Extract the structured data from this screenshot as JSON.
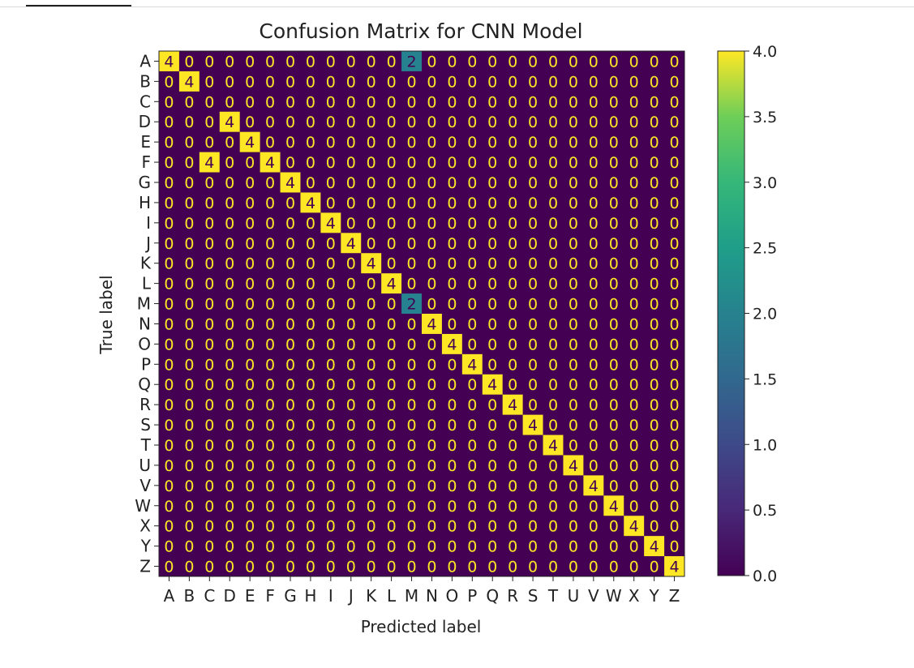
{
  "chart_data": {
    "type": "heatmap",
    "title": "Confusion Matrix for CNN Model",
    "xlabel": "Predicted label",
    "ylabel": "True label",
    "labels": [
      "A",
      "B",
      "C",
      "D",
      "E",
      "F",
      "G",
      "H",
      "I",
      "J",
      "K",
      "L",
      "M",
      "N",
      "O",
      "P",
      "Q",
      "R",
      "S",
      "T",
      "U",
      "V",
      "W",
      "X",
      "Y",
      "Z"
    ],
    "matrix": [
      [
        4,
        0,
        0,
        0,
        0,
        0,
        0,
        0,
        0,
        0,
        0,
        0,
        2,
        0,
        0,
        0,
        0,
        0,
        0,
        0,
        0,
        0,
        0,
        0,
        0,
        0
      ],
      [
        0,
        4,
        0,
        0,
        0,
        0,
        0,
        0,
        0,
        0,
        0,
        0,
        0,
        0,
        0,
        0,
        0,
        0,
        0,
        0,
        0,
        0,
        0,
        0,
        0,
        0
      ],
      [
        0,
        0,
        0,
        0,
        0,
        0,
        0,
        0,
        0,
        0,
        0,
        0,
        0,
        0,
        0,
        0,
        0,
        0,
        0,
        0,
        0,
        0,
        0,
        0,
        0,
        0
      ],
      [
        0,
        0,
        0,
        4,
        0,
        0,
        0,
        0,
        0,
        0,
        0,
        0,
        0,
        0,
        0,
        0,
        0,
        0,
        0,
        0,
        0,
        0,
        0,
        0,
        0,
        0
      ],
      [
        0,
        0,
        0,
        0,
        4,
        0,
        0,
        0,
        0,
        0,
        0,
        0,
        0,
        0,
        0,
        0,
        0,
        0,
        0,
        0,
        0,
        0,
        0,
        0,
        0,
        0
      ],
      [
        0,
        0,
        4,
        0,
        0,
        4,
        0,
        0,
        0,
        0,
        0,
        0,
        0,
        0,
        0,
        0,
        0,
        0,
        0,
        0,
        0,
        0,
        0,
        0,
        0,
        0
      ],
      [
        0,
        0,
        0,
        0,
        0,
        0,
        4,
        0,
        0,
        0,
        0,
        0,
        0,
        0,
        0,
        0,
        0,
        0,
        0,
        0,
        0,
        0,
        0,
        0,
        0,
        0
      ],
      [
        0,
        0,
        0,
        0,
        0,
        0,
        0,
        4,
        0,
        0,
        0,
        0,
        0,
        0,
        0,
        0,
        0,
        0,
        0,
        0,
        0,
        0,
        0,
        0,
        0,
        0
      ],
      [
        0,
        0,
        0,
        0,
        0,
        0,
        0,
        0,
        4,
        0,
        0,
        0,
        0,
        0,
        0,
        0,
        0,
        0,
        0,
        0,
        0,
        0,
        0,
        0,
        0,
        0
      ],
      [
        0,
        0,
        0,
        0,
        0,
        0,
        0,
        0,
        0,
        4,
        0,
        0,
        0,
        0,
        0,
        0,
        0,
        0,
        0,
        0,
        0,
        0,
        0,
        0,
        0,
        0
      ],
      [
        0,
        0,
        0,
        0,
        0,
        0,
        0,
        0,
        0,
        0,
        4,
        0,
        0,
        0,
        0,
        0,
        0,
        0,
        0,
        0,
        0,
        0,
        0,
        0,
        0,
        0
      ],
      [
        0,
        0,
        0,
        0,
        0,
        0,
        0,
        0,
        0,
        0,
        0,
        4,
        0,
        0,
        0,
        0,
        0,
        0,
        0,
        0,
        0,
        0,
        0,
        0,
        0,
        0
      ],
      [
        0,
        0,
        0,
        0,
        0,
        0,
        0,
        0,
        0,
        0,
        0,
        0,
        2,
        0,
        0,
        0,
        0,
        0,
        0,
        0,
        0,
        0,
        0,
        0,
        0,
        0
      ],
      [
        0,
        0,
        0,
        0,
        0,
        0,
        0,
        0,
        0,
        0,
        0,
        0,
        0,
        4,
        0,
        0,
        0,
        0,
        0,
        0,
        0,
        0,
        0,
        0,
        0,
        0
      ],
      [
        0,
        0,
        0,
        0,
        0,
        0,
        0,
        0,
        0,
        0,
        0,
        0,
        0,
        0,
        4,
        0,
        0,
        0,
        0,
        0,
        0,
        0,
        0,
        0,
        0,
        0
      ],
      [
        0,
        0,
        0,
        0,
        0,
        0,
        0,
        0,
        0,
        0,
        0,
        0,
        0,
        0,
        0,
        4,
        0,
        0,
        0,
        0,
        0,
        0,
        0,
        0,
        0,
        0
      ],
      [
        0,
        0,
        0,
        0,
        0,
        0,
        0,
        0,
        0,
        0,
        0,
        0,
        0,
        0,
        0,
        0,
        4,
        0,
        0,
        0,
        0,
        0,
        0,
        0,
        0,
        0
      ],
      [
        0,
        0,
        0,
        0,
        0,
        0,
        0,
        0,
        0,
        0,
        0,
        0,
        0,
        0,
        0,
        0,
        0,
        4,
        0,
        0,
        0,
        0,
        0,
        0,
        0,
        0
      ],
      [
        0,
        0,
        0,
        0,
        0,
        0,
        0,
        0,
        0,
        0,
        0,
        0,
        0,
        0,
        0,
        0,
        0,
        0,
        4,
        0,
        0,
        0,
        0,
        0,
        0,
        0
      ],
      [
        0,
        0,
        0,
        0,
        0,
        0,
        0,
        0,
        0,
        0,
        0,
        0,
        0,
        0,
        0,
        0,
        0,
        0,
        0,
        4,
        0,
        0,
        0,
        0,
        0,
        0
      ],
      [
        0,
        0,
        0,
        0,
        0,
        0,
        0,
        0,
        0,
        0,
        0,
        0,
        0,
        0,
        0,
        0,
        0,
        0,
        0,
        0,
        4,
        0,
        0,
        0,
        0,
        0
      ],
      [
        0,
        0,
        0,
        0,
        0,
        0,
        0,
        0,
        0,
        0,
        0,
        0,
        0,
        0,
        0,
        0,
        0,
        0,
        0,
        0,
        0,
        4,
        0,
        0,
        0,
        0
      ],
      [
        0,
        0,
        0,
        0,
        0,
        0,
        0,
        0,
        0,
        0,
        0,
        0,
        0,
        0,
        0,
        0,
        0,
        0,
        0,
        0,
        0,
        0,
        4,
        0,
        0,
        0
      ],
      [
        0,
        0,
        0,
        0,
        0,
        0,
        0,
        0,
        0,
        0,
        0,
        0,
        0,
        0,
        0,
        0,
        0,
        0,
        0,
        0,
        0,
        0,
        0,
        4,
        0,
        0
      ],
      [
        0,
        0,
        0,
        0,
        0,
        0,
        0,
        0,
        0,
        0,
        0,
        0,
        0,
        0,
        0,
        0,
        0,
        0,
        0,
        0,
        0,
        0,
        0,
        0,
        4,
        0
      ],
      [
        0,
        0,
        0,
        0,
        0,
        0,
        0,
        0,
        0,
        0,
        0,
        0,
        0,
        0,
        0,
        0,
        0,
        0,
        0,
        0,
        0,
        0,
        0,
        0,
        0,
        4
      ]
    ],
    "colorbar": {
      "min": 0.0,
      "max": 4.0,
      "ticks": [
        "0.0",
        "0.5",
        "1.0",
        "1.5",
        "2.0",
        "2.5",
        "3.0",
        "3.5",
        "4.0"
      ],
      "colormap": "viridis"
    },
    "colors": {
      "low": "#440154",
      "mid": "#21918c",
      "high": "#fde725"
    },
    "grid": false
  }
}
